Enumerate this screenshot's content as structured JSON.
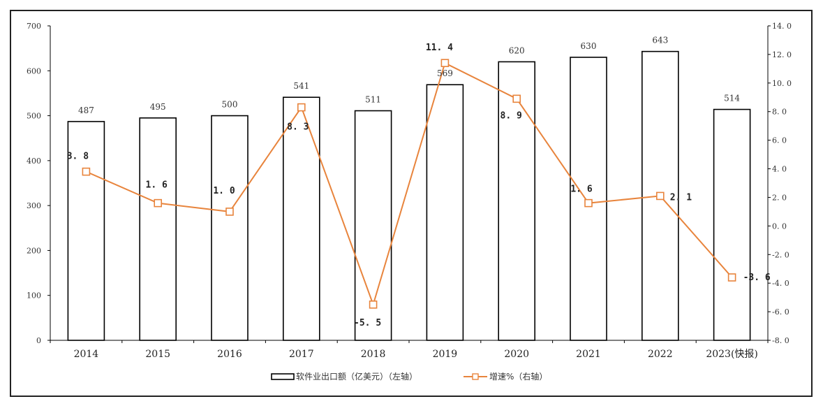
{
  "chart_data": {
    "type": "bar",
    "categories": [
      "2014",
      "2015",
      "2016",
      "2017",
      "2018",
      "2019",
      "2020",
      "2021",
      "2022",
      "2023(快报)"
    ],
    "series": [
      {
        "name": "软件业出口额（亿美元）（左轴）",
        "kind": "bar",
        "axis": "left",
        "values": [
          487,
          495,
          500,
          541,
          511,
          569,
          620,
          630,
          643,
          514
        ],
        "labels": [
          "487",
          "495",
          "500",
          "541",
          "511",
          "569",
          "620",
          "630",
          "643",
          "514"
        ]
      },
      {
        "name": "增速%（右轴）",
        "kind": "line",
        "axis": "right",
        "values": [
          3.8,
          1.6,
          1.0,
          8.3,
          -5.5,
          11.4,
          8.9,
          1.6,
          2.1,
          -3.6
        ],
        "labels": [
          "3. 8",
          "1. 6",
          "1. 0",
          "8. 3",
          "-5. 5",
          "11. 4",
          "8. 9",
          "1. 6",
          "2. 1",
          "-3. 6"
        ]
      }
    ],
    "left_axis": {
      "ylim": [
        0,
        700
      ],
      "ticks": [
        0,
        100,
        200,
        300,
        400,
        500,
        600,
        700
      ],
      "tick_labels": [
        "0",
        "100",
        "200",
        "300",
        "400",
        "500",
        "600",
        "700"
      ]
    },
    "right_axis": {
      "ylim": [
        -8,
        14
      ],
      "ticks": [
        -8,
        -6,
        -4,
        -2,
        0,
        2,
        4,
        6,
        8,
        10,
        12,
        14
      ],
      "tick_labels": [
        "-8. 0",
        "-6. 0",
        "-4. 0",
        "-2. 0",
        "0. 0",
        "2. 0",
        "4. 0",
        "6. 0",
        "8. 0",
        "10. 0",
        "12. 0",
        "14. 0"
      ]
    },
    "grid": false,
    "legend_position": "bottom-center",
    "colors": {
      "bar_fill": "#ffffff",
      "bar_stroke": "#000000",
      "line": "#e8843c"
    }
  }
}
